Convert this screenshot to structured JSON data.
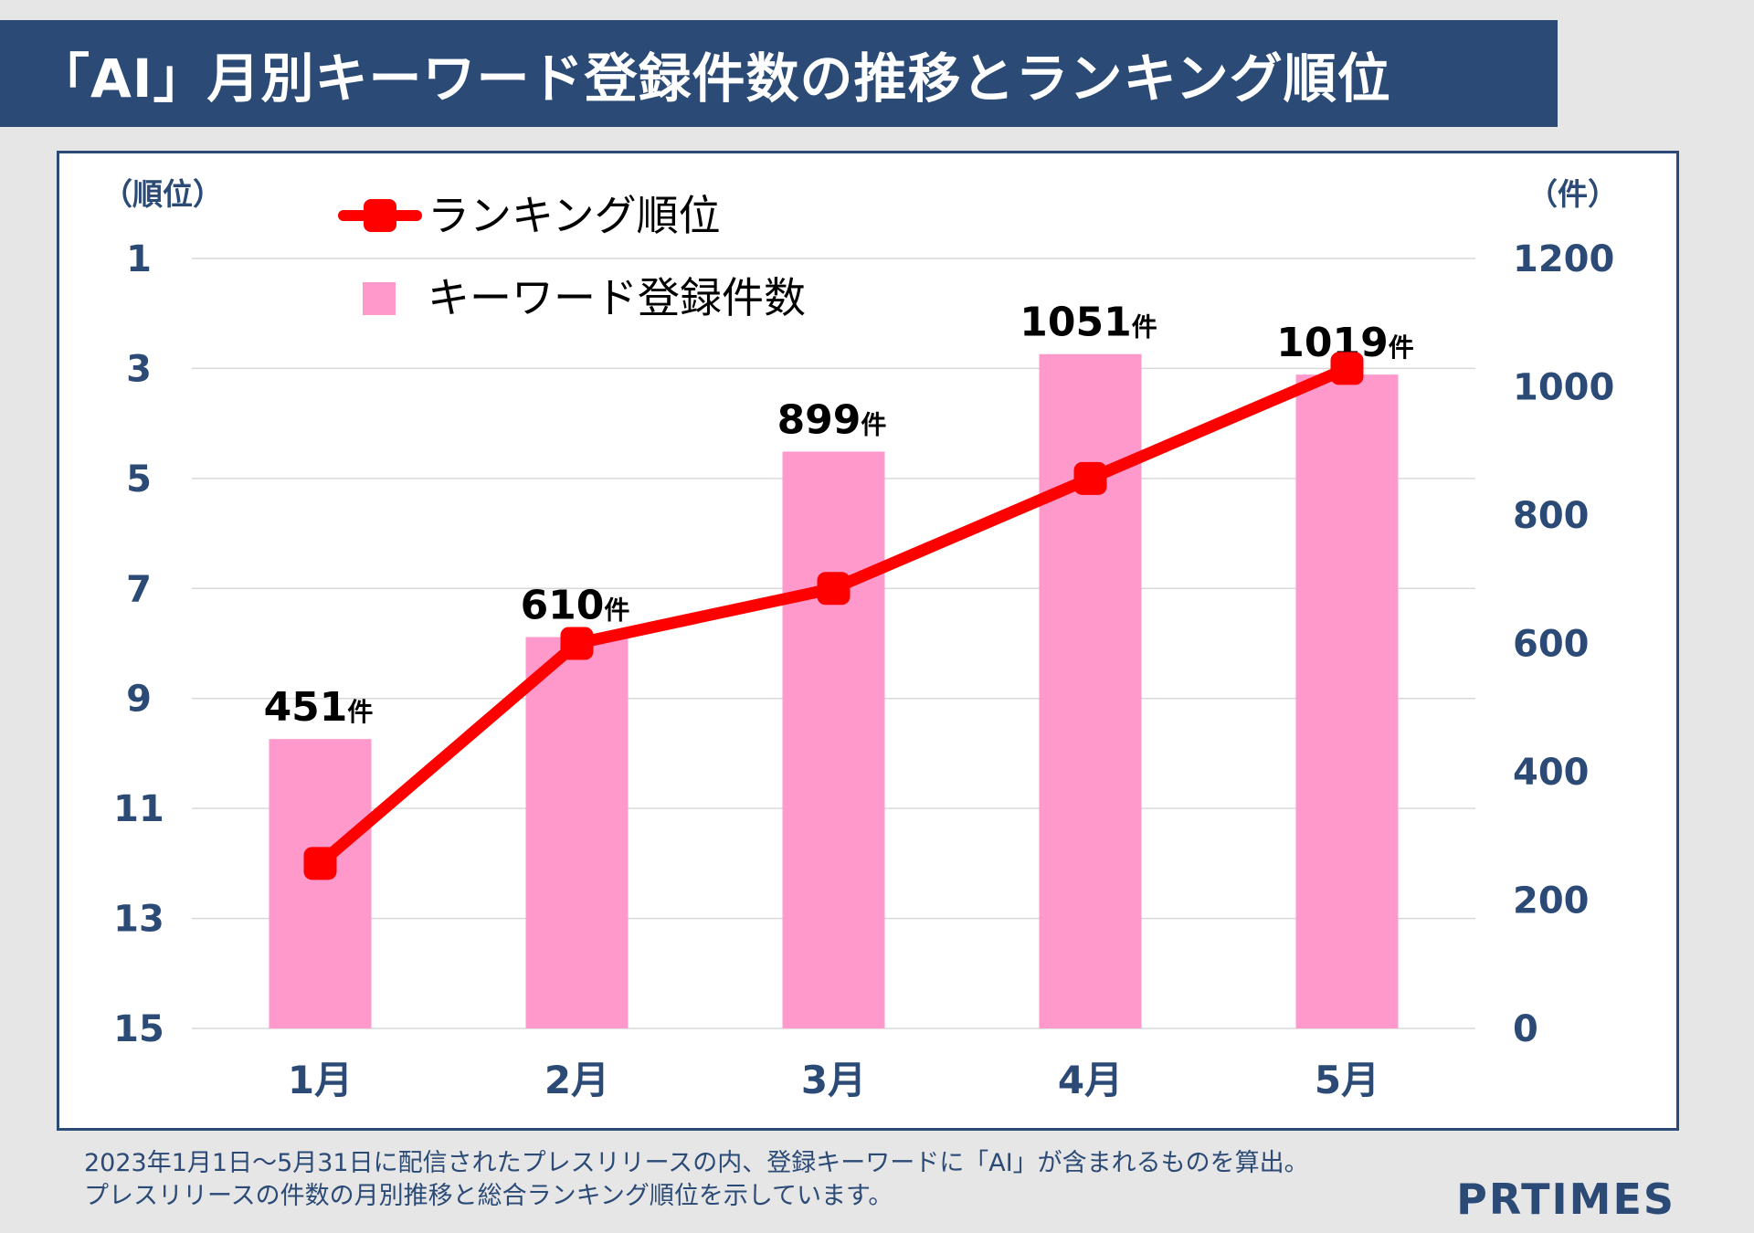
{
  "title": "「AI」月別キーワード登録件数の推移とランキング順位",
  "footnote": {
    "line1": "2023年1月1日〜5月31日に配信されたプレスリリースの内、登録キーワードに「AI」が含まれるものを算出。",
    "line2": "プレスリリースの件数の月別推移と総合ランキング順位を示しています。"
  },
  "logo": "PRTIMES",
  "colors": {
    "header": "#2b4a75",
    "bar": "#ff99cc",
    "line": "#ff0000",
    "axis_text": "#2b4a75",
    "grid": "#d9d9d9"
  },
  "chart_data": {
    "type": "bar+line",
    "categories": [
      "1月",
      "2月",
      "3月",
      "4月",
      "5月"
    ],
    "series": [
      {
        "name": "キーワード登録件数",
        "type": "bar",
        "axis": "right",
        "values": [
          451,
          610,
          899,
          1051,
          1019
        ],
        "data_labels": [
          "451",
          "610",
          "899",
          "1051",
          "1019"
        ],
        "label_unit": "件"
      },
      {
        "name": "ランキング順位",
        "type": "line",
        "axis": "left",
        "values": [
          12,
          8,
          7,
          5,
          3
        ]
      }
    ],
    "left_axis": {
      "title": "（順位）",
      "range": [
        1,
        15
      ],
      "reversed": true,
      "ticks": [
        "1",
        "3",
        "5",
        "7",
        "9",
        "11",
        "13",
        "15"
      ]
    },
    "right_axis": {
      "title": "（件）",
      "range": [
        0,
        1200
      ],
      "ticks": [
        "0",
        "200",
        "400",
        "600",
        "800",
        "1000",
        "1200"
      ]
    },
    "legend_position": "top-left",
    "grid": true
  }
}
